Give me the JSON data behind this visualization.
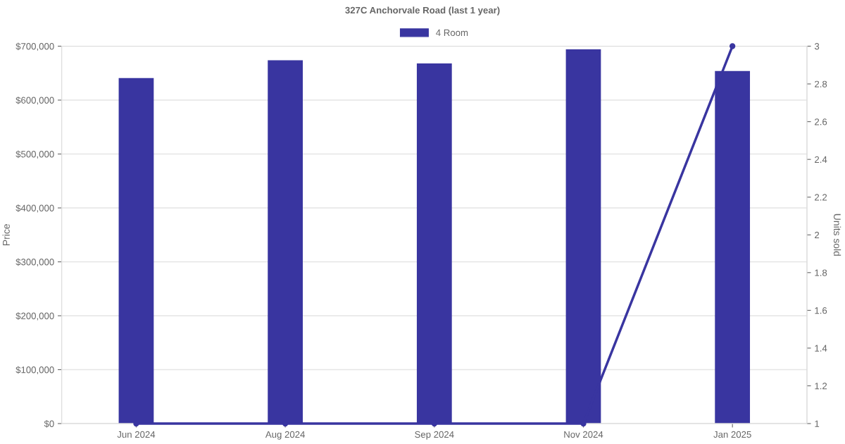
{
  "chart_data": {
    "type": "bar",
    "title": "327C Anchorvale Road (last 1 year)",
    "ylabel": "Price",
    "y2label": "Units sold",
    "categories": [
      "Jun 2024",
      "Aug 2024",
      "Sep 2024",
      "Nov 2024",
      "Jan 2025"
    ],
    "series": [
      {
        "name": "4 Room",
        "color": "#3935a0",
        "values": [
          641000,
          674000,
          668000,
          694000,
          654000
        ]
      },
      {
        "type": "line",
        "axis": "y2",
        "color": "#3935a0",
        "marker": "circle",
        "values": [
          1,
          1,
          1,
          1,
          3
        ]
      }
    ],
    "ylim": [
      0,
      700000
    ],
    "yticks": [
      {
        "value": 0,
        "label": "$0"
      },
      {
        "value": 100000,
        "label": "$100,000"
      },
      {
        "value": 200000,
        "label": "$200,000"
      },
      {
        "value": 300000,
        "label": "$300,000"
      },
      {
        "value": 400000,
        "label": "$400,000"
      },
      {
        "value": 500000,
        "label": "$500,000"
      },
      {
        "value": 600000,
        "label": "$600,000"
      },
      {
        "value": 700000,
        "label": "$700,000"
      }
    ],
    "y2lim": [
      1,
      3
    ],
    "y2ticks": [
      1,
      1.2,
      1.4,
      1.6,
      1.8,
      2,
      2.2,
      2.4,
      2.6,
      2.8,
      3
    ],
    "grid": "y",
    "legend": "top"
  }
}
